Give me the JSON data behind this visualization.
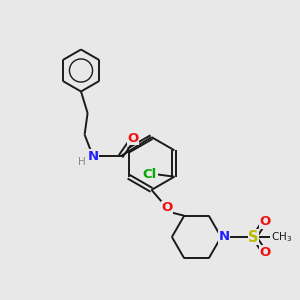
{
  "bg_color": "#e8e8e8",
  "bond_color": "#1a1a1a",
  "N_color": "#2020ff",
  "O_color": "#ee1111",
  "S_color": "#bbbb00",
  "Cl_color": "#00aa00",
  "H_color": "#888888",
  "fs": 8.5,
  "lw": 1.4,
  "figsize": [
    3.0,
    3.0
  ],
  "dpi": 100,
  "xlim": [
    0,
    10
  ],
  "ylim": [
    0,
    10
  ]
}
